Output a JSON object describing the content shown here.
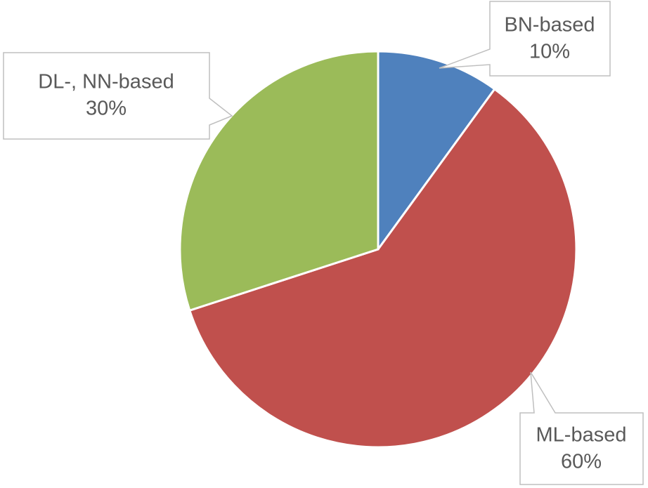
{
  "chart_data": {
    "type": "pie",
    "categories": [
      "BN-based",
      "ML-based",
      "DL-, NN-based"
    ],
    "values": [
      10,
      60,
      30
    ],
    "value_labels": [
      "10%",
      "60%",
      "30%"
    ],
    "colors": [
      "#4f81bd",
      "#c0504d",
      "#9bbb59"
    ]
  }
}
